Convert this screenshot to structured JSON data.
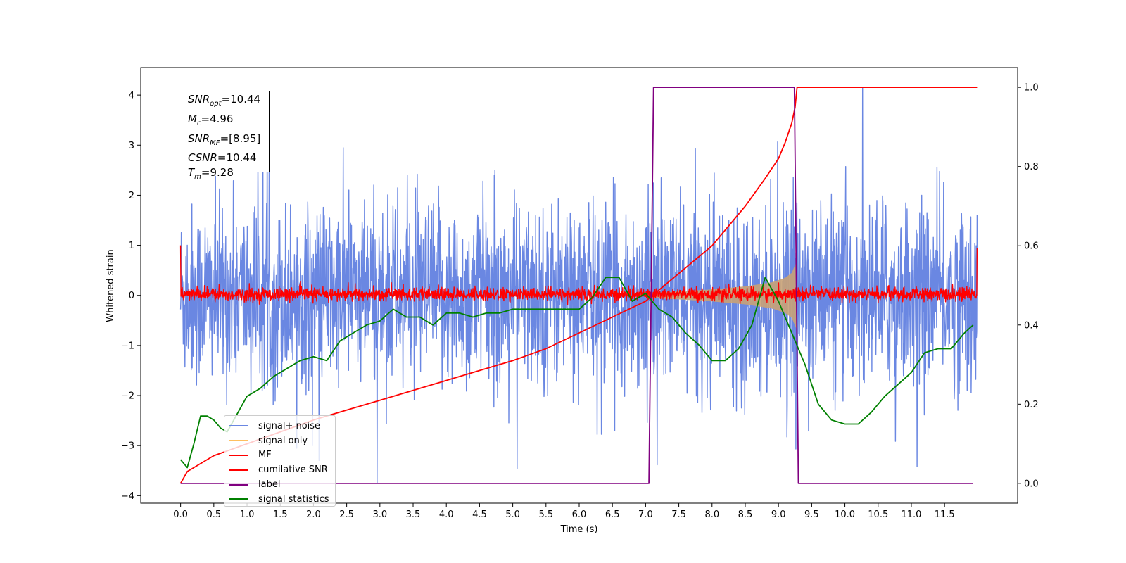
{
  "chart_data": {
    "type": "line",
    "xlabel": "Time (s)",
    "ylabel": "Whitened strain",
    "xlim": [
      -0.6,
      12.6
    ],
    "ylim": [
      -4.15,
      4.55
    ],
    "ylim_right": [
      -0.05,
      1.05
    ],
    "x_ticks": [
      "0.0",
      "0.5",
      "1.0",
      "1.5",
      "2.0",
      "2.5",
      "3.0",
      "3.5",
      "4.0",
      "4.5",
      "5.0",
      "5.5",
      "6.0",
      "6.5",
      "7.0",
      "7.5",
      "8.0",
      "8.5",
      "9.0",
      "9.5",
      "10.0",
      "10.5",
      "11.0",
      "11.5"
    ],
    "y_ticks": [
      "−4",
      "−3",
      "−2",
      "−1",
      "0",
      "1",
      "2",
      "3",
      "4"
    ],
    "y_right_ticks": [
      "0.0",
      "0.2",
      "0.4",
      "0.6",
      "0.8",
      "1.0"
    ],
    "legend_position": "lower-left",
    "annotation": {
      "snr_opt": "10.44",
      "mc": "4.96",
      "snr_mf": "[8.95]",
      "csnr": "10.44",
      "tm": "9.28"
    },
    "series": [
      {
        "name": "signal+ noise",
        "color": "#6a87e2",
        "axis": "left",
        "description": "whitened noise, approx. uniform band",
        "t_start": 0.0,
        "t_end": 11.99,
        "typical_envelope": [
          -2.2,
          2.3
        ],
        "peak_max": 4.15,
        "peak_min": -3.75
      },
      {
        "name": "signal only",
        "color": "#ffbf5f",
        "axis": "left",
        "description": "chirp growing to merger",
        "t_start": 7.0,
        "t_end": 9.28,
        "envelope": [
          [
            7.0,
            0.05
          ],
          [
            7.5,
            0.08
          ],
          [
            8.0,
            0.12
          ],
          [
            8.5,
            0.18
          ],
          [
            8.9,
            0.26
          ],
          [
            9.1,
            0.35
          ],
          [
            9.2,
            0.45
          ],
          [
            9.28,
            0.7
          ]
        ]
      },
      {
        "name": "MF",
        "color": "#ff0000",
        "axis": "left",
        "description": "matched-filter output near zero",
        "t_start": 0.0,
        "t_end": 11.99,
        "typical_envelope": [
          -0.15,
          0.2
        ]
      },
      {
        "name": "cumilative SNR",
        "color": "#ff0000",
        "axis": "right",
        "x": [
          0.0,
          0.1,
          0.5,
          1.0,
          2.0,
          3.0,
          4.0,
          5.0,
          5.5,
          6.0,
          6.5,
          7.0,
          7.5,
          8.0,
          8.5,
          8.8,
          9.0,
          9.1,
          9.2,
          9.25,
          9.28,
          9.3,
          11.99
        ],
        "y": [
          0.0,
          0.03,
          0.07,
          0.1,
          0.16,
          0.21,
          0.26,
          0.31,
          0.34,
          0.38,
          0.42,
          0.46,
          0.53,
          0.6,
          0.7,
          0.77,
          0.82,
          0.86,
          0.91,
          0.95,
          1.0,
          1.0,
          1.0
        ]
      },
      {
        "name": "label",
        "color": "#800080",
        "axis": "right",
        "x": [
          0.0,
          7.05,
          7.12,
          9.24,
          9.3,
          11.93
        ],
        "y": [
          0.0,
          0.0,
          1.0,
          1.0,
          0.0,
          0.0
        ]
      },
      {
        "name": "signal statistics",
        "color": "#008000",
        "axis": "right",
        "x": [
          0.0,
          0.1,
          0.2,
          0.3,
          0.4,
          0.5,
          0.6,
          0.7,
          0.8,
          1.0,
          1.2,
          1.4,
          1.6,
          1.8,
          2.0,
          2.2,
          2.4,
          2.6,
          2.8,
          3.0,
          3.2,
          3.4,
          3.6,
          3.8,
          4.0,
          4.2,
          4.4,
          4.6,
          4.8,
          5.0,
          5.2,
          5.4,
          5.6,
          5.8,
          6.0,
          6.2,
          6.4,
          6.6,
          6.8,
          7.0,
          7.2,
          7.4,
          7.6,
          7.8,
          8.0,
          8.2,
          8.4,
          8.6,
          8.8,
          9.0,
          9.2,
          9.4,
          9.6,
          9.8,
          10.0,
          10.2,
          10.4,
          10.6,
          10.8,
          11.0,
          11.2,
          11.4,
          11.6,
          11.8,
          11.93
        ],
        "y": [
          0.06,
          0.04,
          0.1,
          0.17,
          0.17,
          0.16,
          0.14,
          0.13,
          0.16,
          0.22,
          0.24,
          0.27,
          0.29,
          0.31,
          0.32,
          0.31,
          0.36,
          0.38,
          0.4,
          0.41,
          0.44,
          0.42,
          0.42,
          0.4,
          0.43,
          0.43,
          0.42,
          0.43,
          0.43,
          0.44,
          0.44,
          0.44,
          0.44,
          0.44,
          0.44,
          0.47,
          0.52,
          0.52,
          0.46,
          0.48,
          0.44,
          0.42,
          0.38,
          0.35,
          0.31,
          0.31,
          0.34,
          0.4,
          0.52,
          0.46,
          0.38,
          0.3,
          0.2,
          0.16,
          0.15,
          0.15,
          0.18,
          0.22,
          0.25,
          0.28,
          0.33,
          0.34,
          0.34,
          0.38,
          0.4
        ]
      }
    ]
  }
}
